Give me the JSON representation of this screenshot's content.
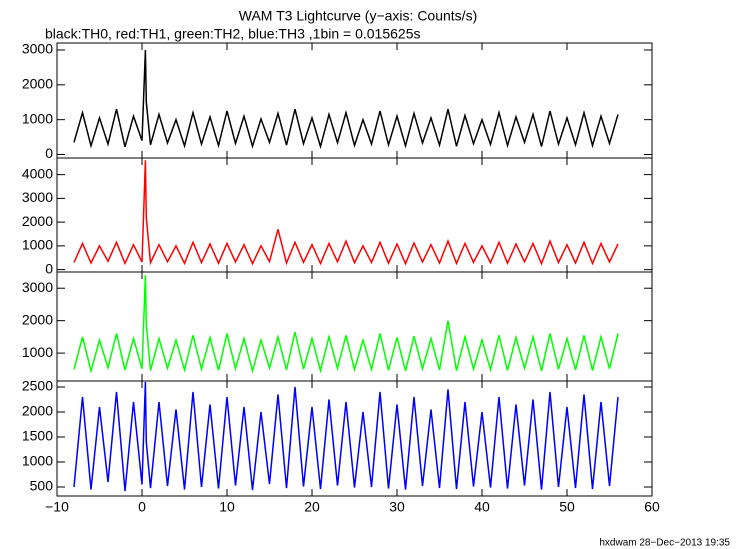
{
  "title": "WAM T3 Lightcurve (y−axis: Counts/s)",
  "subtitle": "black:TH0, red:TH1, green:TH2, blue:TH3 ,1bin = 0.015625s",
  "footer": "hxdwam 28−Dec−2013 19:35",
  "chart_data": [
    {
      "type": "line",
      "x": [
        -8,
        -7,
        -6,
        -5,
        -4,
        -3,
        -2,
        -1,
        0,
        0.4,
        0.5,
        1,
        2,
        3,
        4,
        5,
        6,
        7,
        8,
        9,
        10,
        11,
        12,
        13,
        14,
        15,
        16,
        17,
        18,
        19,
        20,
        21,
        22,
        23,
        24,
        25,
        26,
        27,
        28,
        29,
        30,
        31,
        32,
        33,
        34,
        35,
        36,
        37,
        38,
        39,
        40,
        41,
        42,
        43,
        44,
        45,
        46,
        47,
        48,
        49,
        50,
        51,
        52,
        53,
        54,
        55,
        56
      ],
      "series": [
        {
          "name": "TH0",
          "color": "#000000",
          "values": [
            350,
            1200,
            250,
            1050,
            300,
            1300,
            220,
            1100,
            400,
            3000,
            1500,
            280,
            1150,
            330,
            1000,
            250,
            1200,
            300,
            1080,
            260,
            1250,
            320,
            1100,
            240,
            1020,
            350,
            1180,
            270,
            1300,
            310,
            1050,
            230,
            1150,
            340,
            1200,
            260,
            1000,
            300,
            1250,
            280,
            1100,
            250,
            1180,
            330,
            1050,
            270,
            1300,
            240,
            1120,
            310,
            1000,
            290,
            1200,
            260,
            1080,
            350,
            1150,
            230,
            1250,
            300,
            1050,
            280,
            1200,
            260,
            1100,
            320,
            1150
          ]
        }
      ],
      "xlim": [
        -10,
        60
      ],
      "xticks": [
        -10,
        0,
        10,
        20,
        30,
        40,
        50,
        60
      ],
      "ylim": [
        -100,
        3200
      ],
      "yticks": [
        0,
        1000,
        2000,
        3000
      ]
    },
    {
      "type": "line",
      "x": [
        -8,
        -7,
        -6,
        -5,
        -4,
        -3,
        -2,
        -1,
        0,
        0.4,
        0.5,
        1,
        2,
        3,
        4,
        5,
        6,
        7,
        8,
        9,
        10,
        11,
        12,
        13,
        14,
        15,
        16,
        17,
        18,
        19,
        20,
        21,
        22,
        23,
        24,
        25,
        26,
        27,
        28,
        29,
        30,
        31,
        32,
        33,
        34,
        35,
        36,
        37,
        38,
        39,
        40,
        41,
        42,
        43,
        44,
        45,
        46,
        47,
        48,
        49,
        50,
        51,
        52,
        53,
        54,
        55,
        56
      ],
      "series": [
        {
          "name": "TH1",
          "color": "#ff0000",
          "values": [
            300,
            1100,
            280,
            1000,
            350,
            1150,
            260,
            1050,
            320,
            4600,
            2200,
            290,
            1050,
            330,
            1000,
            260,
            1150,
            300,
            1080,
            270,
            1100,
            320,
            1050,
            250,
            1000,
            340,
            1700,
            280,
            1150,
            310,
            1050,
            260,
            1100,
            330,
            1200,
            290,
            1000,
            300,
            1150,
            270,
            1080,
            250,
            1120,
            320,
            1050,
            280,
            1200,
            260,
            1100,
            310,
            1000,
            290,
            1150,
            270,
            1080,
            330,
            1100,
            250,
            1200,
            300,
            1050,
            280,
            1150,
            260,
            1100,
            320,
            1080
          ]
        }
      ],
      "xlim": [
        -10,
        60
      ],
      "xticks": [
        -10,
        0,
        10,
        20,
        30,
        40,
        50,
        60
      ],
      "ylim": [
        -100,
        4700
      ],
      "yticks": [
        0,
        1000,
        2000,
        3000,
        4000
      ]
    },
    {
      "type": "line",
      "x": [
        -8,
        -7,
        -6,
        -5,
        -4,
        -3,
        -2,
        -1,
        0,
        0.4,
        0.5,
        1,
        2,
        3,
        4,
        5,
        6,
        7,
        8,
        9,
        10,
        11,
        12,
        13,
        14,
        15,
        16,
        17,
        18,
        19,
        20,
        21,
        22,
        23,
        24,
        25,
        26,
        27,
        28,
        29,
        30,
        31,
        32,
        33,
        34,
        35,
        36,
        37,
        38,
        39,
        40,
        41,
        42,
        43,
        44,
        45,
        46,
        47,
        48,
        49,
        50,
        51,
        52,
        53,
        54,
        55,
        56
      ],
      "series": [
        {
          "name": "TH2",
          "color": "#00ff00",
          "values": [
            500,
            1500,
            450,
            1400,
            550,
            1600,
            480,
            1450,
            520,
            3400,
            1900,
            460,
            1450,
            530,
            1400,
            480,
            1550,
            510,
            1480,
            470,
            1600,
            520,
            1450,
            450,
            1400,
            540,
            1500,
            480,
            1650,
            510,
            1450,
            460,
            1500,
            530,
            1550,
            490,
            1400,
            500,
            1600,
            470,
            1480,
            450,
            1520,
            520,
            1450,
            480,
            2000,
            460,
            1500,
            510,
            1400,
            490,
            1550,
            470,
            1480,
            530,
            1500,
            450,
            1600,
            500,
            1450,
            480,
            1550,
            460,
            1500,
            520,
            1600
          ]
        }
      ],
      "xlim": [
        -10,
        60
      ],
      "xticks": [
        -10,
        0,
        10,
        20,
        30,
        40,
        50,
        60
      ],
      "ylim": [
        140,
        3500
      ],
      "yticks": [
        1000,
        2000,
        3000
      ]
    },
    {
      "type": "line",
      "x": [
        -8,
        -7,
        -6,
        -5,
        -4,
        -3,
        -2,
        -1,
        0,
        0.4,
        0.5,
        1,
        2,
        3,
        4,
        5,
        6,
        7,
        8,
        9,
        10,
        11,
        12,
        13,
        14,
        15,
        16,
        17,
        18,
        19,
        20,
        21,
        22,
        23,
        24,
        25,
        26,
        27,
        28,
        29,
        30,
        31,
        32,
        33,
        34,
        35,
        36,
        37,
        38,
        39,
        40,
        41,
        42,
        43,
        44,
        45,
        46,
        47,
        48,
        49,
        50,
        51,
        52,
        53,
        54,
        55,
        56
      ],
      "series": [
        {
          "name": "TH3",
          "color": "#0000ff",
          "values": [
            500,
            2300,
            450,
            2100,
            600,
            2400,
            420,
            2200,
            550,
            2600,
            1400,
            480,
            2200,
            520,
            2050,
            450,
            2400,
            500,
            2150,
            470,
            2300,
            530,
            2100,
            440,
            2000,
            560,
            2350,
            480,
            2500,
            510,
            2100,
            460,
            2250,
            530,
            2200,
            490,
            2000,
            500,
            2400,
            470,
            2150,
            450,
            2300,
            520,
            2050,
            480,
            2450,
            460,
            2200,
            510,
            2000,
            490,
            2300,
            470,
            2150,
            530,
            2250,
            450,
            2400,
            500,
            2100,
            480,
            2350,
            460,
            2200,
            520,
            2300
          ]
        }
      ],
      "xlim": [
        -10,
        60
      ],
      "xticks": [
        {
          "value": -10,
          "label": "−10"
        },
        0,
        10,
        20,
        30,
        40,
        50,
        60
      ],
      "ylim": [
        320,
        2620
      ],
      "yticks": [
        500,
        1000,
        1500,
        2000,
        2500
      ]
    }
  ]
}
